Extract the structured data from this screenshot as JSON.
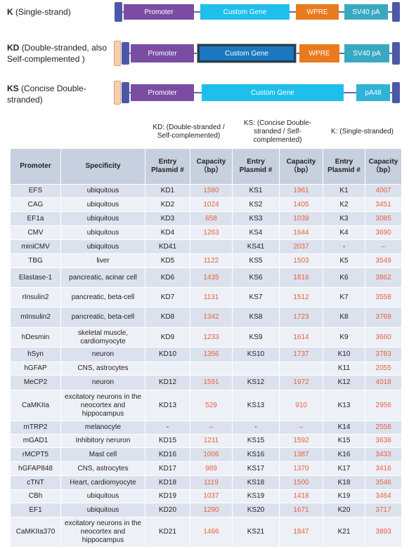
{
  "constructs": [
    {
      "code": "K",
      "desc": "(Single-strand)",
      "elements": [
        "Promoter",
        "Custom Gene",
        "WPRE",
        "SV40 pA"
      ]
    },
    {
      "code": "KD",
      "desc": "(Double-stranded, also Self-complemented )",
      "elements": [
        "Promoter",
        "Custom Gene",
        "WPRE",
        "SV40 pA"
      ]
    },
    {
      "code": "KS",
      "desc": "(Concise Double-stranded)",
      "elements": [
        "Promoter",
        "Custom Gene",
        "pA48"
      ]
    }
  ],
  "table": {
    "group_headers": [
      "KD: (Double-stranded / Self-complemented)",
      "KS: (Concise Double-stranded / Self-complemented)",
      "K: (Single-stranded)"
    ],
    "column_headers": [
      "Promoter",
      "Specificity",
      "Entry Plasmid #",
      "Capacity（bp）",
      "Entry Plasmid #",
      "Capacity（bp）",
      "Entry Plasmid #",
      "Capacity（bp）"
    ],
    "rows": [
      [
        "EFS",
        "ubiquitous",
        "KD1",
        1580,
        "KS1",
        1961,
        "K1",
        4007
      ],
      [
        "CAG",
        "ubiquitous",
        "KD2",
        1024,
        "KS2",
        1405,
        "K2",
        3451
      ],
      [
        "EF1a",
        "ubiquitous",
        "KD3",
        658,
        "KS3",
        1039,
        "K3",
        3085
      ],
      [
        "CMV",
        "ubiquitous",
        "KD4",
        1263,
        "KS4",
        1644,
        "K4",
        3690
      ],
      [
        "miniCMV",
        "ubiquitous",
        "KD41",
        null,
        "KS41",
        2037,
        "-",
        "–"
      ],
      [
        "TBG",
        "liver",
        "KD5",
        1122,
        "KS5",
        1503,
        "K5",
        3549
      ],
      [
        "Elastase-1",
        "pancreatic, acinar cell",
        "KD6",
        1435,
        "KS6",
        1816,
        "K6",
        3862
      ],
      [
        "rInsulin2",
        "pancreatic, beta-cell",
        "KD7",
        1131,
        "KS7",
        1512,
        "K7",
        3558
      ],
      [
        "mInsulin2",
        "pancreatic, beta-cell",
        "KD8",
        1342,
        "KS8",
        1723,
        "K8",
        3769
      ],
      [
        "hDesmin",
        "skeletal muscle, cardiomyocyte",
        "KD9",
        1233,
        "KS9",
        1614,
        "K9",
        3660
      ],
      [
        "hSyn",
        "neuron",
        "KD10",
        1356,
        "KS10",
        1737,
        "K10",
        3783
      ],
      [
        "hGFAP",
        "CNS, astrocytes",
        null,
        null,
        null,
        null,
        "K11",
        2055
      ],
      [
        "MeCP2",
        "neuron",
        "KD12",
        1591,
        "KS12",
        1972,
        "K12",
        4018
      ],
      [
        "CaMKIIa",
        "excitatory neurons in the neocortex and hippocampus",
        "KD13",
        529,
        "KS13",
        910,
        "K13",
        2956
      ],
      [
        "mTRP2",
        "melanocyte",
        "-",
        "–",
        "-",
        "–",
        "K14",
        2558
      ],
      [
        "mGAD1",
        "Inhibitory neruron",
        "KD15",
        1211,
        "KS15",
        1592,
        "K15",
        3638
      ],
      [
        "rMCPT5",
        "Mast cell",
        "KD16",
        1006,
        "KS16",
        1387,
        "K16",
        3433
      ],
      [
        "hGFAP848",
        "CNS, astrocytes",
        "KD17",
        989,
        "KS17",
        1370,
        "K17",
        3416
      ],
      [
        "cTNT",
        "Heart, cardiomyocyte",
        "KD18",
        1119,
        "KS18",
        1500,
        "K18",
        3546
      ],
      [
        "CBh",
        "ubiquitous",
        "KD19",
        1037,
        "KS19",
        1418,
        "K19",
        3464
      ],
      [
        "EF1",
        "ubiquitous",
        "KD20",
        1290,
        "KS20",
        1671,
        "K20",
        3717
      ],
      [
        "CaMKIIa370",
        "excitatory neurons in the neocortex and hippocampus",
        "KD21",
        1466,
        "KS21",
        1847,
        "K21",
        3893
      ]
    ]
  }
}
